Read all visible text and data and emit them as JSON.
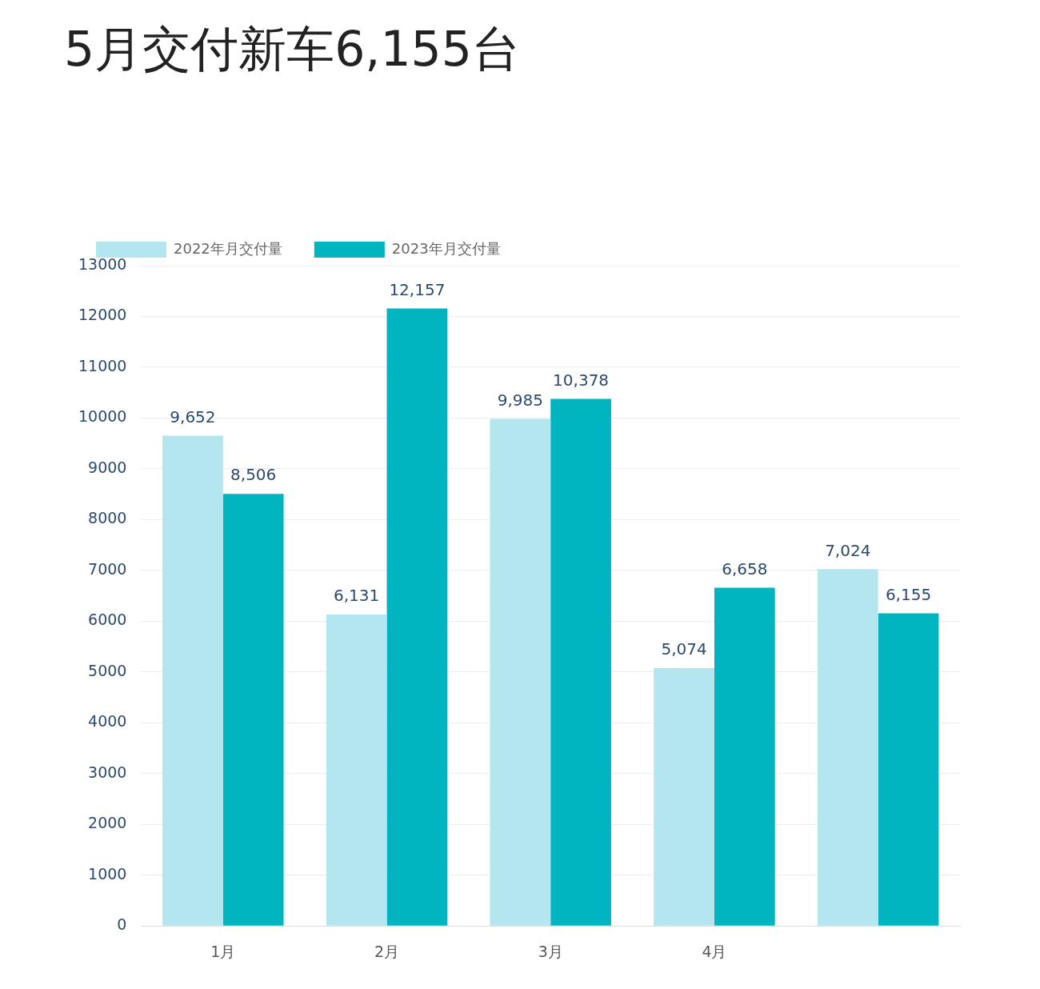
{
  "chart_data": {
    "type": "bar",
    "title": "5月交付新车6,155台",
    "categories": [
      "1月",
      "2月",
      "3月",
      "4月",
      null
    ],
    "series": [
      {
        "name": "2022年月交付量",
        "color": "#b3e6ee",
        "values": [
          9652,
          6131,
          9985,
          5074,
          7024
        ],
        "value_labels": [
          "9,652",
          "6,131",
          "9,985",
          "5,074",
          "7,024"
        ]
      },
      {
        "name": "2023年月交付量",
        "color": "#00b5bf",
        "values": [
          8506,
          12157,
          10378,
          6658,
          6155
        ],
        "value_labels": [
          "8,506",
          "12,157",
          "10,378",
          "6,658",
          "6,155"
        ]
      }
    ],
    "ylim": [
      0,
      13000
    ],
    "yticks": [
      0,
      1000,
      2000,
      3000,
      4000,
      5000,
      6000,
      7000,
      8000,
      9000,
      10000,
      11000,
      12000,
      13000
    ],
    "grid": "y",
    "legend": "top left"
  }
}
